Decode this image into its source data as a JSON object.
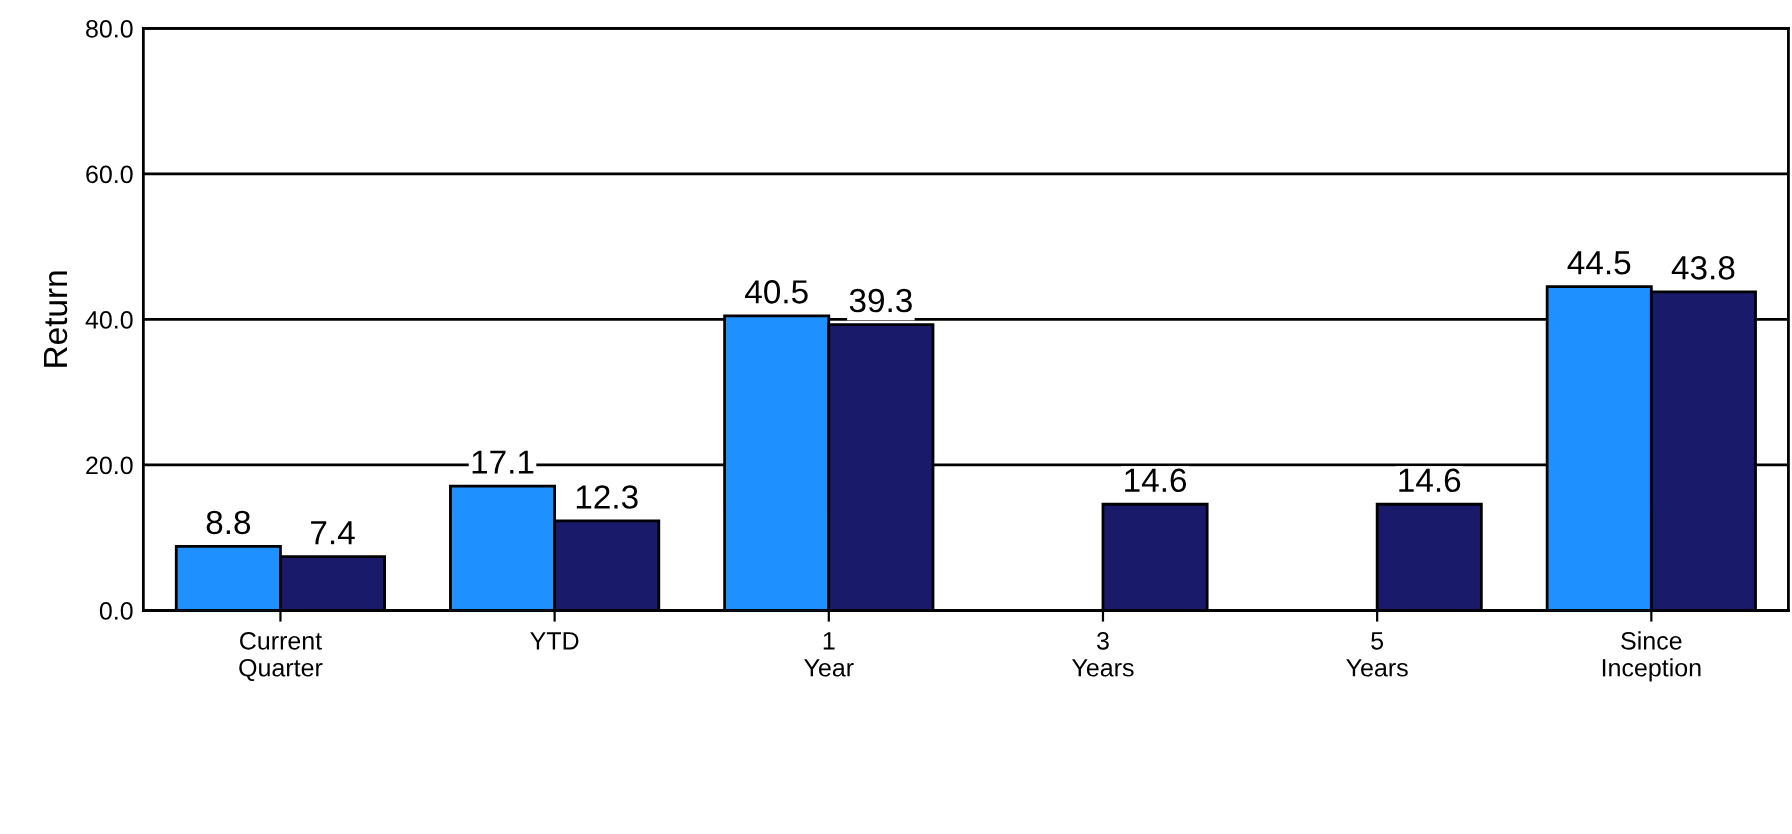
{
  "chart_data": {
    "type": "bar",
    "ylabel": "Return",
    "categories": [
      "Current\nQuarter",
      "YTD",
      "1\nYear",
      "3\nYears",
      "5\nYears",
      "Since\nInception"
    ],
    "series": [
      {
        "color": "#1e90ff",
        "values": [
          8.8,
          17.1,
          40.5,
          null,
          null,
          44.5
        ]
      },
      {
        "color": "#1a1a6b",
        "values": [
          7.4,
          12.3,
          39.3,
          14.6,
          14.6,
          43.8
        ]
      }
    ],
    "ylim": [
      0,
      80
    ],
    "yticks": [
      {
        "value": 0,
        "label": "0.0"
      },
      {
        "value": 20,
        "label": "20.0"
      },
      {
        "value": 40,
        "label": "40.0"
      },
      {
        "value": 60,
        "label": "60.0"
      },
      {
        "value": 80,
        "label": "80.0"
      }
    ],
    "grid": "y",
    "data_labels": true
  }
}
